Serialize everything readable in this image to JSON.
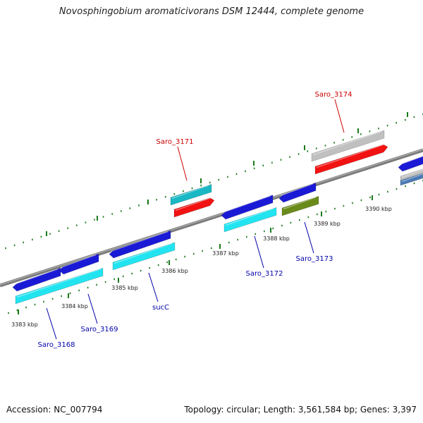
{
  "title": "Novosphingobium aromaticivorans DSM 12444, complete genome",
  "accession": "Accession: NC_007794",
  "topology": "Topology: circular; Length: 3,561,584 bp; Genes: 3,397",
  "colors": {
    "blue": "#1a1ad6",
    "cyan": "#22e4f0",
    "teal": "#1ab8c4",
    "red": "#f21212",
    "gray": "#c0c0c0",
    "olive": "#6a8a1a",
    "steel": "#4a7ab4",
    "label_red": "#cc0000",
    "label_blue": "#0000aa",
    "tick_green": "#1a7a1a",
    "backbone": "#808080"
  },
  "ticks": [
    {
      "label": "3383 kbp"
    },
    {
      "label": "3384 kbp"
    },
    {
      "label": "3385 kbp"
    },
    {
      "label": "3386 kbp"
    },
    {
      "label": "3387 kbp"
    },
    {
      "label": "3388 kbp"
    },
    {
      "label": "3389 kbp"
    },
    {
      "label": "3390 kbp"
    }
  ],
  "gene_labels": {
    "saro_3171": "Saro_3171",
    "saro_3174": "Saro_3174",
    "saro_3168": "Saro_3168",
    "saro_3169": "Saro_3169",
    "sucC": "sucC",
    "saro_3172": "Saro_3172",
    "saro_3173": "Saro_3173"
  }
}
